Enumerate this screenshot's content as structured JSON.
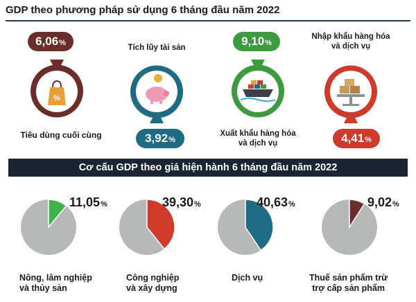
{
  "header": {
    "title": "GDP theo phương pháp sử dụng 6 tháng đầu năm 2022"
  },
  "components": [
    {
      "value": "6,06",
      "unit": "%",
      "label": "Tiêu dùng cuối cùng",
      "color": "#6a2d2a",
      "icon": "shopping-bag-icon"
    },
    {
      "value": "3,92",
      "unit": "%",
      "label": "Tích lũy tài sản",
      "color": "#1e6b84",
      "icon": "piggy-bank-icon"
    },
    {
      "value": "9,10",
      "unit": "%",
      "label_line1": "Xuất khẩu hàng hóa",
      "label_line2": "và dịch vụ",
      "color": "#3c9a3f",
      "icon": "cargo-ship-icon"
    },
    {
      "value": "4,41",
      "unit": "%",
      "label_line1": "Nhập khẩu hàng hóa",
      "label_line2": "và dịch vụ",
      "color": "#cf3a2b",
      "icon": "scale-boxes-icon"
    }
  ],
  "section2": {
    "title": "Cơ cấu GDP theo giá hiện hành 6 tháng đầu năm 2022"
  },
  "chart_data": [
    {
      "type": "pie",
      "values": [
        11.05,
        88.95
      ],
      "highlight": "11,05",
      "unit": "%",
      "label_line1": "Nông, lâm nghiệp",
      "label_line2": "và thủy sản",
      "color": "#3cb44b"
    },
    {
      "type": "pie",
      "values": [
        39.3,
        60.7
      ],
      "highlight": "39,30",
      "unit": "%",
      "label_line1": "Công nghiệp",
      "label_line2": "và xây dựng",
      "color": "#cf3a2b"
    },
    {
      "type": "pie",
      "values": [
        40.63,
        59.37
      ],
      "highlight": "40,63",
      "unit": "%",
      "label_line1": "Dịch vụ",
      "label_line2": "",
      "color": "#1e6b84"
    },
    {
      "type": "pie",
      "values": [
        9.02,
        90.98
      ],
      "highlight": "9,02",
      "unit": "%",
      "label_line1": "Thuế sản phẩm trừ",
      "label_line2": "trợ cấp sản phẩm",
      "color": "#6a2d2a"
    }
  ],
  "colors": {
    "pie_rest": "#b7b9b8",
    "band": "#1a2433"
  }
}
